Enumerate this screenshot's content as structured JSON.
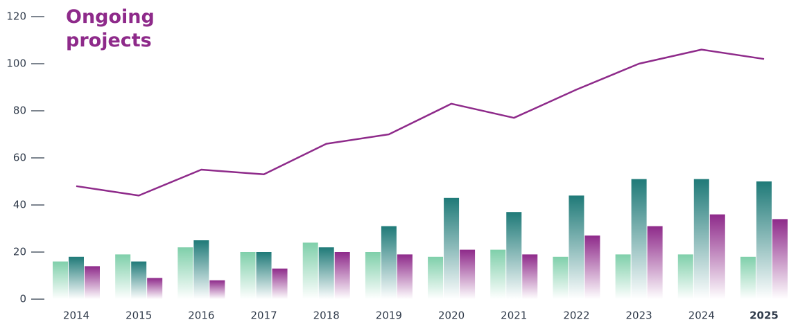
{
  "chart_data": {
    "type": "bar_line",
    "title": "Ongoing projects",
    "categories": [
      "2014",
      "2015",
      "2016",
      "2017",
      "2018",
      "2019",
      "2020",
      "2021",
      "2022",
      "2023",
      "2024",
      "2025"
    ],
    "series": [
      {
        "type": "bar",
        "color": "#7fcfaa",
        "values": [
          16,
          19,
          22,
          20,
          24,
          20,
          18,
          21,
          18,
          19,
          19,
          18
        ]
      },
      {
        "type": "bar",
        "color": "#1f7a78",
        "values": [
          18,
          16,
          25,
          20,
          22,
          31,
          43,
          37,
          44,
          51,
          51,
          50
        ]
      },
      {
        "type": "bar",
        "color": "#8e2a8a",
        "values": [
          14,
          9,
          8,
          13,
          20,
          19,
          21,
          19,
          27,
          31,
          36,
          34
        ]
      },
      {
        "type": "line",
        "color": "#8e2a8a",
        "values": [
          48,
          44,
          55,
          53,
          66,
          70,
          83,
          77,
          89,
          100,
          106,
          102
        ]
      }
    ],
    "ylim": [
      0,
      120
    ],
    "yticks": [
      0,
      20,
      40,
      60,
      80,
      100,
      120
    ],
    "highlight_last_category": true
  }
}
